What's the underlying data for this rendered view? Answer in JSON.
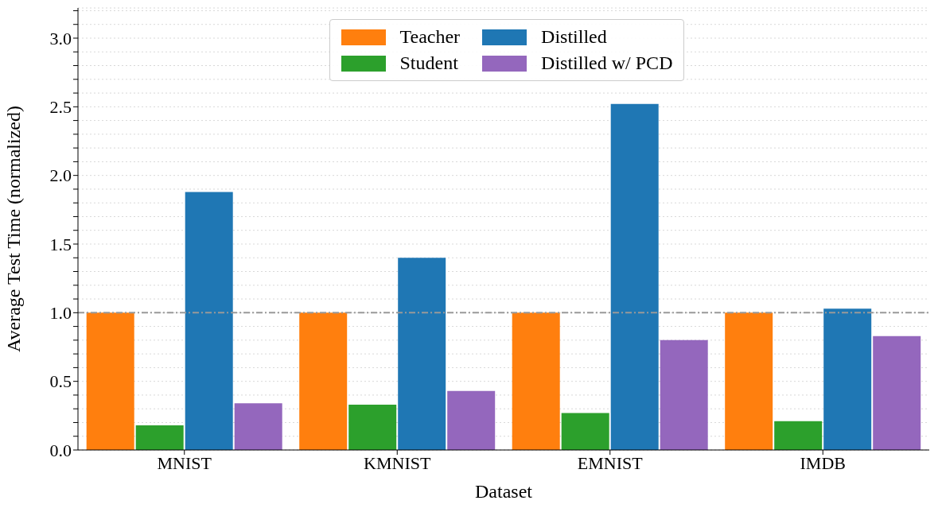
{
  "chart_data": {
    "type": "bar",
    "xlabel": "Dataset",
    "ylabel": "Average Test Time (normalized)",
    "categories": [
      "MNIST",
      "KMNIST",
      "EMNIST",
      "IMDB"
    ],
    "series": [
      {
        "name": "Teacher",
        "color": "#ff7f0e",
        "values": [
          1.0,
          1.0,
          1.0,
          1.0
        ]
      },
      {
        "name": "Student",
        "color": "#2ca02c",
        "values": [
          0.18,
          0.33,
          0.27,
          0.21
        ]
      },
      {
        "name": "Distilled",
        "color": "#1f77b4",
        "values": [
          1.88,
          1.4,
          2.52,
          1.03
        ]
      },
      {
        "name": "Distilled w/ PCD",
        "color": "#9467bd",
        "values": [
          0.34,
          0.43,
          0.8,
          0.83
        ]
      }
    ],
    "ylim": [
      0,
      3.22
    ],
    "yticks": [
      {
        "value": 0,
        "label": "0.0"
      },
      {
        "value": 0.1,
        "label": null
      },
      {
        "value": 0.2,
        "label": null
      },
      {
        "value": 0.3,
        "label": null
      },
      {
        "value": 0.4,
        "label": null
      },
      {
        "value": 0.5,
        "label": "0.5"
      },
      {
        "value": 0.6,
        "label": null
      },
      {
        "value": 0.7,
        "label": null
      },
      {
        "value": 0.8,
        "label": null
      },
      {
        "value": 0.9,
        "label": null
      },
      {
        "value": 1,
        "label": "1.0"
      },
      {
        "value": 1.1,
        "label": null
      },
      {
        "value": 1.2,
        "label": null
      },
      {
        "value": 1.3,
        "label": null
      },
      {
        "value": 1.4,
        "label": null
      },
      {
        "value": 1.5,
        "label": "1.5"
      },
      {
        "value": 1.6,
        "label": null
      },
      {
        "value": 1.7,
        "label": null
      },
      {
        "value": 1.8,
        "label": null
      },
      {
        "value": 1.9,
        "label": null
      },
      {
        "value": 2,
        "label": "2.0"
      },
      {
        "value": 2.1,
        "label": null
      },
      {
        "value": 2.2,
        "label": null
      },
      {
        "value": 2.3,
        "label": null
      },
      {
        "value": 2.4,
        "label": null
      },
      {
        "value": 2.5,
        "label": "2.5"
      },
      {
        "value": 2.6,
        "label": null
      },
      {
        "value": 2.7,
        "label": null
      },
      {
        "value": 2.8,
        "label": null
      },
      {
        "value": 2.9,
        "label": null
      },
      {
        "value": 3,
        "label": "3.0"
      },
      {
        "value": 3.1,
        "label": null
      },
      {
        "value": 3.2,
        "label": null
      }
    ],
    "grid": "y",
    "legend": "top",
    "ref_lines": [
      {
        "axis": "y",
        "value": 1,
        "color": "#999999",
        "line_style": "dashed"
      }
    ]
  }
}
